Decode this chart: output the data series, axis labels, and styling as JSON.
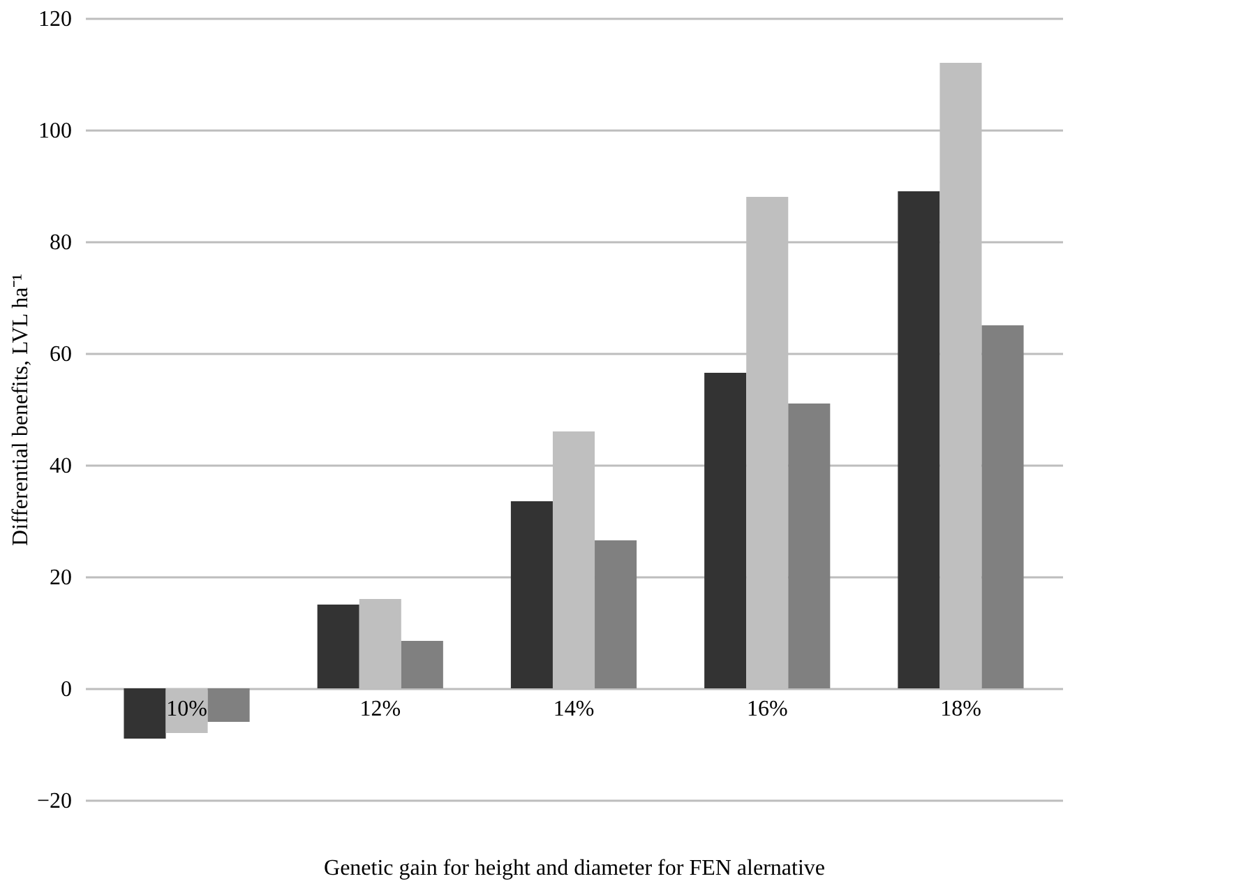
{
  "chart_data": {
    "type": "bar",
    "xlabel": "Genetic gain for height and diameter for FEN alernative",
    "ylabel": "Differential benefits, LVL ha⁻¹",
    "categories": [
      "10%",
      "12%",
      "14%",
      "16%",
      "18%"
    ],
    "series": [
      {
        "color": "#333333",
        "values": [
          -9,
          15,
          33.5,
          56.5,
          89
        ]
      },
      {
        "color": "#bfbfbf",
        "values": [
          -8,
          16,
          46,
          88,
          112
        ]
      },
      {
        "color": "#808080",
        "values": [
          -6,
          8.5,
          26.5,
          51,
          65
        ]
      }
    ],
    "ylim": [
      -20,
      120
    ],
    "yticks": [
      -20,
      0,
      20,
      40,
      60,
      80,
      100,
      120
    ],
    "grid": "y",
    "legend": false
  }
}
